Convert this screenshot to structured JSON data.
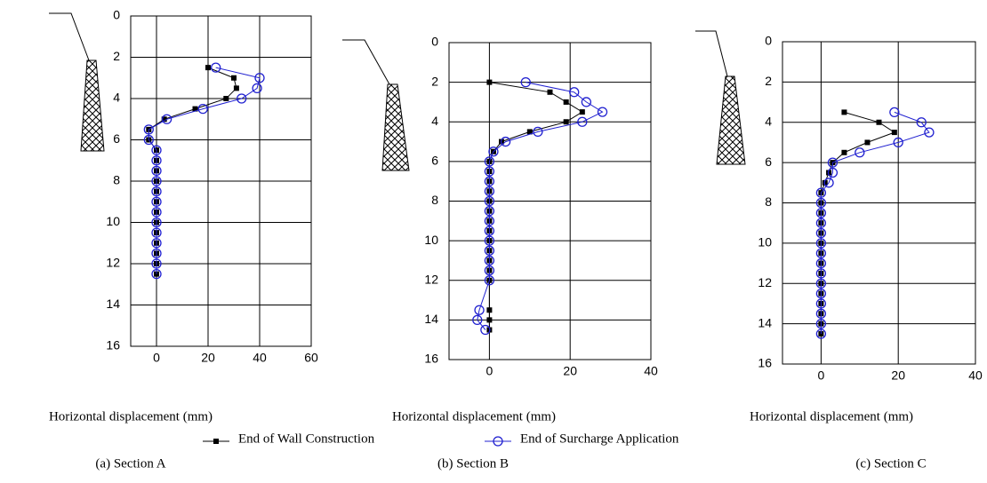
{
  "chart_data": [
    {
      "type": "scatter-line",
      "xlabel": "Horizontal displacement (mm)",
      "caption": "(a) Section A",
      "xlim": [
        -10,
        60
      ],
      "xticks": [
        0,
        20,
        40,
        60
      ],
      "ylim": [
        0,
        16
      ],
      "yticks": [
        0,
        2,
        4,
        6,
        8,
        10,
        12,
        14,
        16
      ],
      "y_inverted": true,
      "grid": true,
      "series": [
        {
          "name": "End of Wall Construction",
          "color": "#000000",
          "marker": "square",
          "x": [
            20,
            30,
            31,
            27,
            15,
            3,
            -3,
            -3,
            0,
            0,
            0,
            0,
            0,
            0,
            0,
            0,
            0,
            0,
            0,
            0,
            0
          ],
          "y": [
            2.5,
            3,
            3.5,
            4,
            4.5,
            5,
            5.5,
            6,
            6.5,
            7,
            7.5,
            8,
            8.5,
            9,
            9.5,
            10,
            10.5,
            11,
            11.5,
            12,
            12.5
          ]
        },
        {
          "name": "End of Surcharge Application",
          "color": "#2020d0",
          "marker": "circle",
          "x": [
            23,
            40,
            39,
            33,
            18,
            4,
            -3,
            -3,
            0,
            0,
            0,
            0,
            0,
            0,
            0,
            0,
            0,
            0,
            0,
            0,
            0
          ],
          "y": [
            2.5,
            3,
            3.5,
            4,
            4.5,
            5,
            5.5,
            6,
            6.5,
            7,
            7.5,
            8,
            8.5,
            9,
            9.5,
            10,
            10.5,
            11,
            11.5,
            12,
            12.5
          ]
        }
      ]
    },
    {
      "type": "scatter-line",
      "xlabel": "Horizontal displacement (mm)",
      "caption": "(b) Section B",
      "xlim": [
        -10,
        40
      ],
      "xticks": [
        0,
        20,
        40
      ],
      "ylim": [
        0,
        16
      ],
      "yticks": [
        0,
        2,
        4,
        6,
        8,
        10,
        12,
        14,
        16
      ],
      "y_inverted": true,
      "grid": true,
      "series": [
        {
          "name": "End of Wall Construction",
          "color": "#000000",
          "marker": "square",
          "x": [
            0,
            15,
            19,
            23,
            19,
            10,
            3,
            1,
            0,
            0,
            0,
            0,
            0,
            0,
            0,
            0,
            0,
            0,
            0,
            0,
            0,
            0,
            0,
            0
          ],
          "y": [
            2,
            2.5,
            3,
            3.5,
            4,
            4.5,
            5,
            5.5,
            6,
            6.5,
            7,
            7.5,
            8,
            8.5,
            9,
            9.5,
            10,
            10.5,
            11,
            11.5,
            12,
            13.5,
            14,
            14.5
          ]
        },
        {
          "name": "End of Surcharge Application",
          "color": "#2020d0",
          "marker": "circle",
          "x": [
            9,
            21,
            24,
            28,
            23,
            12,
            4,
            1,
            0,
            0,
            0,
            0,
            0,
            0,
            0,
            0,
            0,
            0,
            0,
            0,
            0,
            -2.5,
            -3,
            -1
          ],
          "y": [
            2,
            2.5,
            3,
            3.5,
            4,
            4.5,
            5,
            5.5,
            6,
            6.5,
            7,
            7.5,
            8,
            8.5,
            9,
            9.5,
            10,
            10.5,
            11,
            11.5,
            12,
            13.5,
            14,
            14.5
          ]
        }
      ]
    },
    {
      "type": "scatter-line",
      "xlabel": "Horizontal displacement (mm)",
      "caption": "(c) Section C",
      "xlim": [
        -10,
        40
      ],
      "xticks": [
        0,
        20,
        40
      ],
      "ylim": [
        0,
        16
      ],
      "yticks": [
        0,
        2,
        4,
        6,
        8,
        10,
        12,
        14,
        16
      ],
      "y_inverted": true,
      "grid": true,
      "series": [
        {
          "name": "End of Wall Construction",
          "color": "#000000",
          "marker": "square",
          "x": [
            6,
            15,
            19,
            12,
            6,
            3,
            2,
            1,
            0,
            0,
            0,
            0,
            0,
            0,
            0,
            0,
            0,
            0,
            0,
            0,
            0,
            0,
            0
          ],
          "y": [
            3.5,
            4,
            4.5,
            5,
            5.5,
            6,
            6.5,
            7,
            7.5,
            8,
            8.5,
            9,
            9.5,
            10,
            10.5,
            11,
            11.5,
            12,
            12.5,
            13,
            13.5,
            14,
            14.5
          ]
        },
        {
          "name": "End of Surcharge Application",
          "color": "#2020d0",
          "marker": "circle",
          "x": [
            19,
            26,
            28,
            20,
            10,
            3,
            3,
            2,
            0,
            0,
            0,
            0,
            0,
            0,
            0,
            0,
            0,
            0,
            0,
            0,
            0,
            0,
            0
          ],
          "y": [
            3.5,
            4,
            4.5,
            5,
            5.5,
            6,
            6.5,
            7,
            7.5,
            8,
            8.5,
            9,
            9.5,
            10,
            10.5,
            11,
            11.5,
            12,
            12.5,
            13,
            13.5,
            14,
            14.5
          ]
        }
      ]
    }
  ]
}
